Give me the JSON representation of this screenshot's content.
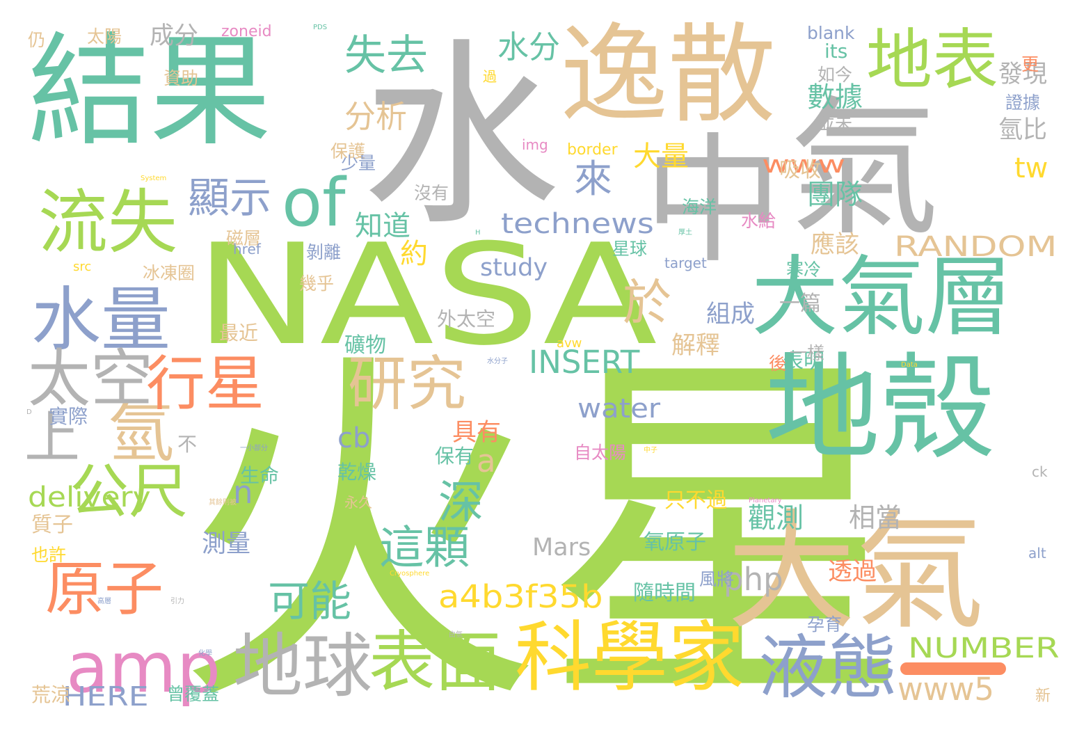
{
  "colors": {
    "green": "#a6d854",
    "teal": "#66c2a5",
    "gray": "#b3b3b3",
    "tan": "#e5c494",
    "blue": "#8da0cb",
    "orange": "#fc8d62",
    "yellow": "#ffd92f",
    "pink": "#e78ac3"
  },
  "words": [
    {
      "text": "火星",
      "color": "green"
    },
    {
      "text": "NASA",
      "color": "green"
    },
    {
      "text": "水",
      "color": "gray"
    },
    {
      "text": "結果",
      "color": "teal"
    },
    {
      "text": "逸散",
      "color": "tan"
    },
    {
      "text": "中",
      "color": "gray"
    },
    {
      "text": "氣",
      "color": "gray"
    },
    {
      "text": "地表",
      "color": "green"
    },
    {
      "text": "地殼",
      "color": "teal"
    },
    {
      "text": "大氣",
      "color": "tan"
    },
    {
      "text": "大氣層",
      "color": "teal"
    },
    {
      "text": "科學家",
      "color": "yellow"
    },
    {
      "text": "表面",
      "color": "green"
    },
    {
      "text": "地球",
      "color": "gray"
    },
    {
      "text": "液態",
      "color": "blue"
    },
    {
      "text": "amp",
      "color": "pink"
    },
    {
      "text": "原子",
      "color": "orange"
    },
    {
      "text": "公尺",
      "color": "green"
    },
    {
      "text": "氫",
      "color": "tan"
    },
    {
      "text": "水量",
      "color": "blue"
    },
    {
      "text": "流失",
      "color": "green"
    },
    {
      "text": "太空",
      "color": "gray"
    },
    {
      "text": "上",
      "color": "gray"
    },
    {
      "text": "行星",
      "color": "orange"
    },
    {
      "text": "研究",
      "color": "tan"
    },
    {
      "text": "of",
      "color": "teal"
    },
    {
      "text": "顯示",
      "color": "blue"
    },
    {
      "text": "失去",
      "color": "teal"
    },
    {
      "text": "來",
      "color": "blue"
    },
    {
      "text": "於",
      "color": "tan"
    },
    {
      "text": "深",
      "color": "teal"
    },
    {
      "text": "這顆",
      "color": "teal"
    },
    {
      "text": "可能",
      "color": "teal"
    },
    {
      "text": "a4b3f35b",
      "color": "yellow"
    },
    {
      "text": "technews",
      "color": "blue"
    },
    {
      "text": "INSERT",
      "color": "teal"
    },
    {
      "text": "RANDOM",
      "color": "tan"
    },
    {
      "text": "NUMBER",
      "color": "green"
    },
    {
      "text": "www5",
      "color": "tan"
    },
    {
      "text": "HERE",
      "color": "blue"
    },
    {
      "text": "delivery",
      "color": "green"
    },
    {
      "text": "php",
      "color": "gray"
    },
    {
      "text": "cb",
      "color": "blue"
    },
    {
      "text": "water",
      "color": "blue"
    },
    {
      "text": "study",
      "color": "blue"
    },
    {
      "text": "Mars",
      "color": "gray"
    },
    {
      "text": "www",
      "color": "orange"
    },
    {
      "text": "tw",
      "color": "yellow"
    },
    {
      "text": "a",
      "color": "tan"
    },
    {
      "text": "n",
      "color": "blue"
    },
    {
      "text": "水分",
      "color": "teal"
    },
    {
      "text": "分析",
      "color": "tan"
    },
    {
      "text": "數據",
      "color": "teal"
    },
    {
      "text": "發現",
      "color": "gray"
    },
    {
      "text": "氫比",
      "color": "gray"
    },
    {
      "text": "團隊",
      "color": "teal"
    },
    {
      "text": "應該",
      "color": "tan"
    },
    {
      "text": "大量",
      "color": "yellow"
    },
    {
      "text": "吸收",
      "color": "tan"
    },
    {
      "text": "知道",
      "color": "teal"
    },
    {
      "text": "約",
      "color": "yellow"
    },
    {
      "text": "解釋",
      "color": "tan"
    },
    {
      "text": "組成",
      "color": "blue"
    },
    {
      "text": "一篇",
      "color": "gray"
    },
    {
      "text": "觀測",
      "color": "teal"
    },
    {
      "text": "相當",
      "color": "gray"
    },
    {
      "text": "只不過",
      "color": "yellow"
    },
    {
      "text": "氧原子",
      "color": "teal"
    },
    {
      "text": "測量",
      "color": "blue"
    },
    {
      "text": "透過",
      "color": "orange"
    },
    {
      "text": "隨時間",
      "color": "teal"
    },
    {
      "text": "表明",
      "color": "teal"
    },
    {
      "text": "具有",
      "color": "orange"
    },
    {
      "text": "礦物",
      "color": "teal"
    },
    {
      "text": "成分",
      "color": "gray"
    },
    {
      "text": "沒有",
      "color": "gray"
    },
    {
      "text": "海洋",
      "color": "teal"
    },
    {
      "text": "水給",
      "color": "pink"
    },
    {
      "text": "星球",
      "color": "teal"
    },
    {
      "text": "寒冷",
      "color": "teal"
    },
    {
      "text": "保有",
      "color": "teal"
    },
    {
      "text": "乾燥",
      "color": "teal"
    },
    {
      "text": "生命",
      "color": "teal"
    },
    {
      "text": "實際",
      "color": "blue"
    },
    {
      "text": "質子",
      "color": "tan"
    },
    {
      "text": "也許",
      "color": "yellow"
    },
    {
      "text": "荒涼",
      "color": "tan"
    },
    {
      "text": "曾覆蓋",
      "color": "teal"
    },
    {
      "text": "自太陽",
      "color": "pink"
    },
    {
      "text": "孕育",
      "color": "blue"
    },
    {
      "text": "風將",
      "color": "blue"
    },
    {
      "text": "最近",
      "color": "tan"
    },
    {
      "text": "外太空",
      "color": "gray"
    },
    {
      "text": "幾乎",
      "color": "tan"
    },
    {
      "text": "剝離",
      "color": "blue"
    },
    {
      "text": "磁層",
      "color": "tan"
    },
    {
      "text": "冰凍圈",
      "color": "tan"
    },
    {
      "text": "資助",
      "color": "tan"
    },
    {
      "text": "保護",
      "color": "tan"
    },
    {
      "text": "少量",
      "color": "blue"
    },
    {
      "text": "並未",
      "color": "gray"
    },
    {
      "text": "如今",
      "color": "gray"
    },
    {
      "text": "證據",
      "color": "blue"
    },
    {
      "text": "一樣",
      "color": "gray"
    },
    {
      "text": "後",
      "color": "orange"
    },
    {
      "text": "不",
      "color": "gray"
    },
    {
      "text": "仍",
      "color": "tan"
    },
    {
      "text": "太陽",
      "color": "tan"
    },
    {
      "text": "更",
      "color": "orange"
    },
    {
      "text": "過",
      "color": "yellow"
    },
    {
      "text": "永久",
      "color": "tan"
    },
    {
      "text": "新",
      "color": "tan"
    },
    {
      "text": "zoneid",
      "color": "pink"
    },
    {
      "text": "blank",
      "color": "blue"
    },
    {
      "text": "its",
      "color": "teal"
    },
    {
      "text": "img",
      "color": "pink"
    },
    {
      "text": "border",
      "color": "yellow"
    },
    {
      "text": "href",
      "color": "blue"
    },
    {
      "text": "src",
      "color": "yellow"
    },
    {
      "text": "target",
      "color": "blue"
    },
    {
      "text": "avw",
      "color": "yellow"
    },
    {
      "text": "alt",
      "color": "blue"
    },
    {
      "text": "ck",
      "color": "gray"
    },
    {
      "text": "PDS",
      "color": "teal"
    },
    {
      "text": "一小部分",
      "color": "blue"
    },
    {
      "text": "中子",
      "color": "yellow"
    },
    {
      "text": "水分子",
      "color": "blue"
    },
    {
      "text": "Cryosphere",
      "color": "yellow"
    },
    {
      "text": "Planetary",
      "color": "pink"
    },
    {
      "text": "System",
      "color": "yellow"
    },
    {
      "text": "Data",
      "color": "yellow"
    },
    {
      "text": "引力",
      "color": "gray"
    },
    {
      "text": "由氫",
      "color": "gray"
    },
    {
      "text": "高層",
      "color": "blue"
    },
    {
      "text": "化學",
      "color": "blue"
    },
    {
      "text": "厚土",
      "color": "teal"
    },
    {
      "text": "其餘則被",
      "color": "tan"
    },
    {
      "text": "H",
      "color": "teal"
    },
    {
      "text": "D",
      "color": "gray"
    }
  ]
}
